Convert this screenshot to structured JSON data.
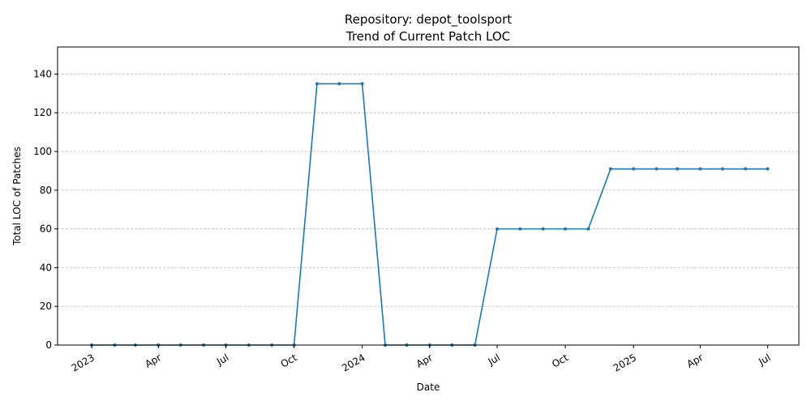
{
  "chart_data": {
    "type": "line",
    "title": "Repository: depot_toolsport",
    "subtitle": "Trend of Current Patch LOC",
    "xlabel": "Date",
    "ylabel": "Total LOC of Patches",
    "ylim": [
      0,
      154
    ],
    "xlim": [
      "2022-11-16",
      "2025-08-12"
    ],
    "grid": "y-dashed",
    "y_ticks": [
      0,
      20,
      40,
      60,
      80,
      100,
      120,
      140
    ],
    "x_ticks": [
      {
        "date": "2023-01-01",
        "label": "2023"
      },
      {
        "date": "2023-04-01",
        "label": "Apr"
      },
      {
        "date": "2023-07-01",
        "label": "Jul"
      },
      {
        "date": "2023-10-01",
        "label": "Oct"
      },
      {
        "date": "2024-01-01",
        "label": "2024"
      },
      {
        "date": "2024-04-01",
        "label": "Apr"
      },
      {
        "date": "2024-07-01",
        "label": "Jul"
      },
      {
        "date": "2024-10-01",
        "label": "Oct"
      },
      {
        "date": "2025-01-01",
        "label": "2025"
      },
      {
        "date": "2025-04-01",
        "label": "Apr"
      },
      {
        "date": "2025-07-01",
        "label": "Jul"
      }
    ],
    "line_color": "#1f77b4",
    "series": [
      {
        "x": [
          "2023-01-01",
          "2023-02-01",
          "2023-03-01",
          "2023-04-01",
          "2023-05-01",
          "2023-06-01",
          "2023-07-01",
          "2023-08-01",
          "2023-09-01",
          "2023-10-01",
          "2023-11-01",
          "2023-12-01",
          "2024-01-01",
          "2024-02-01",
          "2024-03-01",
          "2024-04-01",
          "2024-05-01",
          "2024-06-01",
          "2024-07-01",
          "2024-08-01",
          "2024-09-01",
          "2024-10-01",
          "2024-11-01",
          "2024-12-01",
          "2025-01-01",
          "2025-02-01",
          "2025-03-01",
          "2025-04-01",
          "2025-05-01",
          "2025-06-01",
          "2025-07-01"
        ],
        "values": [
          0,
          0,
          0,
          0,
          0,
          0,
          0,
          0,
          0,
          0,
          135,
          135,
          135,
          0,
          0,
          0,
          0,
          0,
          60,
          60,
          60,
          60,
          60,
          91,
          91,
          91,
          91,
          91,
          91,
          91,
          91
        ]
      }
    ]
  }
}
